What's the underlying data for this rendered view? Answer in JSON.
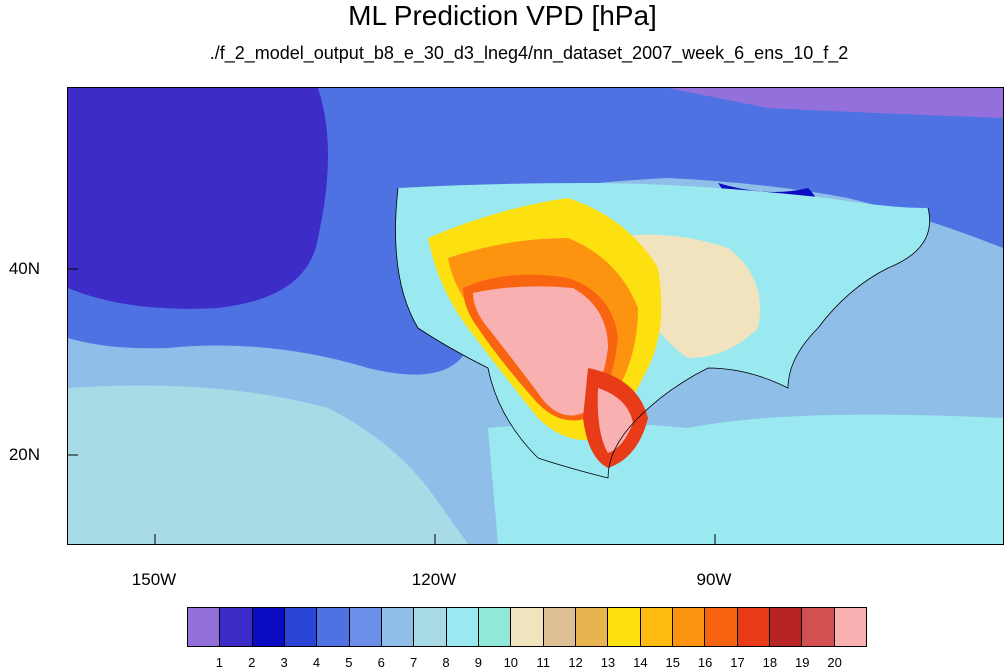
{
  "title": "ML Prediction VPD [hPa]",
  "subtitle": "./f_2_model_output_b8_e_30_d3_lneg4/nn_dataset_2007_week_6_ens_10_f_2",
  "axes": {
    "x_labels": [
      "150W",
      "120W",
      "90W"
    ],
    "y_labels": [
      "40N",
      "20N"
    ]
  },
  "legend": {
    "labels": [
      "1",
      "2",
      "3",
      "4",
      "5",
      "6",
      "7",
      "8",
      "9",
      "10",
      "11",
      "12",
      "13",
      "14",
      "15",
      "16",
      "17",
      "18",
      "19",
      "20"
    ],
    "colors": [
      "#9370db",
      "#3d2cc8",
      "#0b0cc4",
      "#2b45d6",
      "#4f72e3",
      "#6b8ee8",
      "#8fbfe8",
      "#a9dbe6",
      "#9be9f0",
      "#8fe8d8",
      "#f2e3bf",
      "#ddbf93",
      "#e7b450",
      "#fde010",
      "#fdba10",
      "#fd9410",
      "#f96410",
      "#e83c18",
      "#b82424",
      "#d25050",
      "#f8b0b0"
    ]
  }
}
